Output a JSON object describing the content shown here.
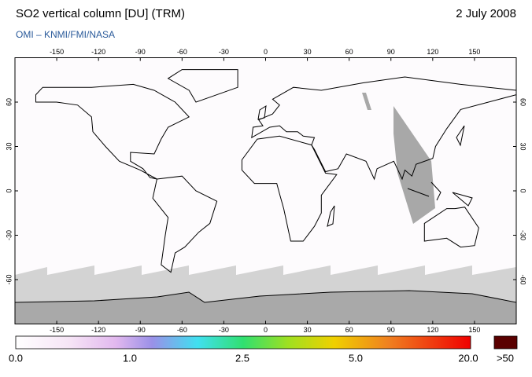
{
  "map": {
    "title": "SO2 vertical column [DU] (TRM)",
    "date": "2 July 2008",
    "subtitle": "OMI  –  KNMI/FMI/NASA",
    "xlim": [
      -180,
      180
    ],
    "ylim": [
      -90,
      90
    ],
    "xticks": [
      -150,
      -120,
      -90,
      -60,
      -30,
      0,
      30,
      60,
      90,
      120,
      150
    ],
    "yticks": [
      60,
      30,
      0,
      -30,
      -60
    ]
  },
  "colorbar": {
    "labels": [
      "0.0",
      "1.0",
      "2.5",
      "5.0",
      "20.0"
    ],
    "overflow": ">50"
  }
}
